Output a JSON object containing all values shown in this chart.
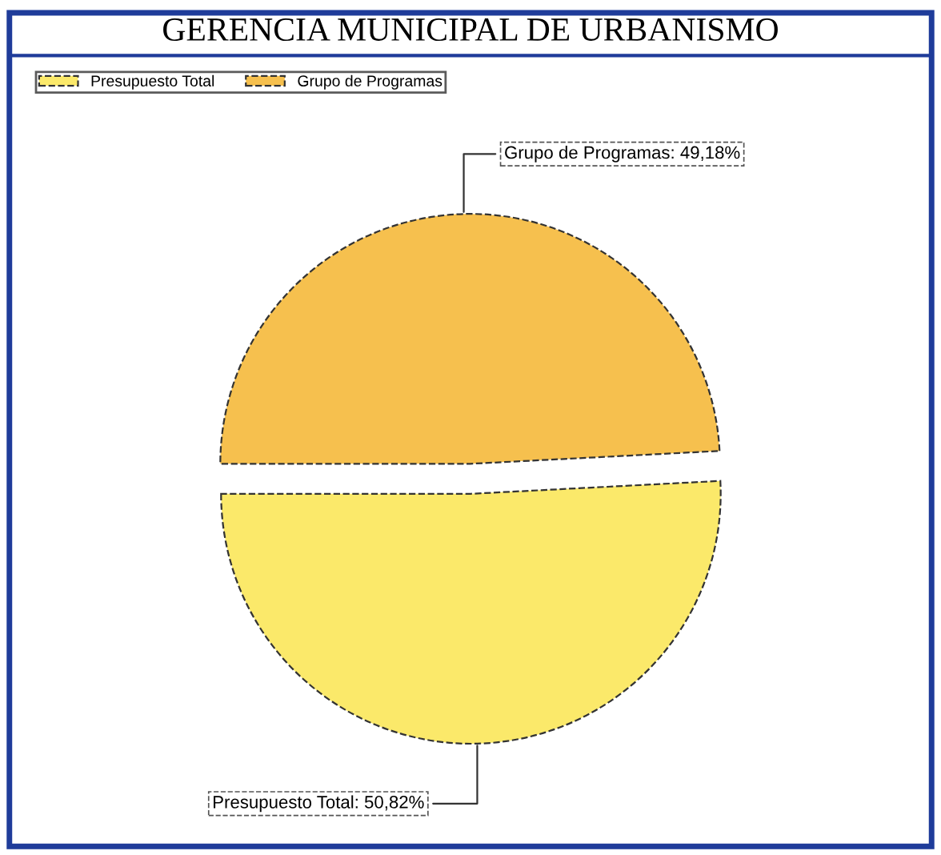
{
  "chart_data": {
    "type": "pie",
    "title": "GERENCIA MUNICIPAL DE URBANISMO",
    "categories": [
      "Presupuesto Total",
      "Grupo de Programas"
    ],
    "values": [
      50.82,
      49.18
    ],
    "colors": [
      "#fbe96a",
      "#f6c04e"
    ],
    "value_labels": [
      "Presupuesto Total: 50,82%",
      "Grupo de Programas: 49,18%"
    ],
    "legend": "top left"
  }
}
